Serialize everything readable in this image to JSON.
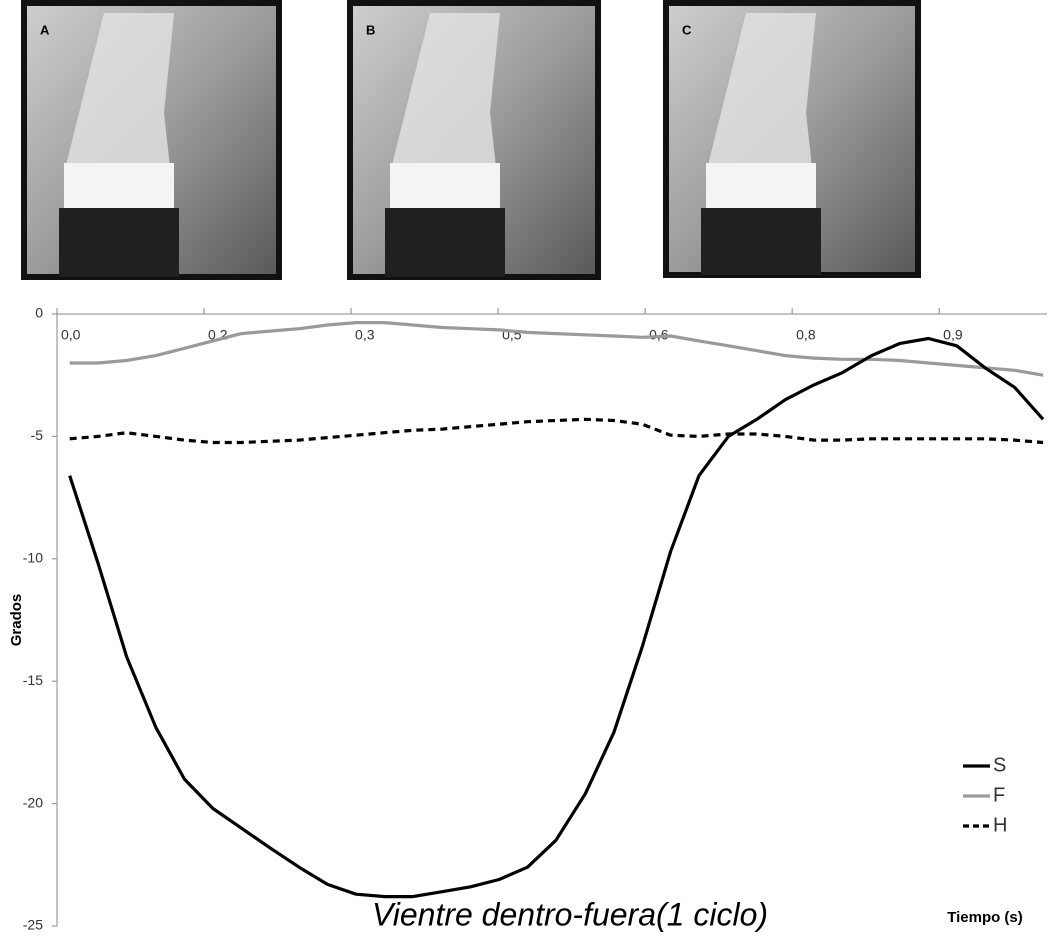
{
  "chart_data": {
    "type": "line",
    "title": "Vientre dentro-fuera(1 ciclo)",
    "x_label": "Tiempo (s)",
    "y_label": "Grados",
    "panel_labels": [
      "A",
      "B",
      "C"
    ],
    "x": [
      0.013,
      0.042,
      0.071,
      0.101,
      0.13,
      0.159,
      0.188,
      0.217,
      0.247,
      0.276,
      0.305,
      0.334,
      0.363,
      0.393,
      0.422,
      0.451,
      0.48,
      0.509,
      0.539,
      0.568,
      0.597,
      0.626,
      0.655,
      0.685,
      0.714,
      0.743,
      0.772,
      0.801,
      0.831,
      0.86,
      0.889,
      0.918,
      0.947,
      0.977,
      1.006
    ],
    "series": [
      {
        "name": "S",
        "color": "#000000",
        "line_style": "solid",
        "values": [
          -6.6,
          -10.2,
          -14.0,
          -16.9,
          -19.0,
          -20.2,
          -21.0,
          -21.8,
          -22.6,
          -23.3,
          -23.7,
          -23.8,
          -23.8,
          -23.6,
          -23.4,
          -23.1,
          -22.6,
          -21.5,
          -19.6,
          -17.1,
          -13.6,
          -9.7,
          -6.6,
          -5.0,
          -4.3,
          -3.5,
          -2.9,
          -2.4,
          -1.7,
          -1.2,
          -1.0,
          -1.3,
          -2.2,
          -3.0,
          -4.3
        ]
      },
      {
        "name": "F",
        "color": "#9a9a9a",
        "line_style": "solid",
        "values": [
          -2.0,
          -2.0,
          -1.9,
          -1.7,
          -1.4,
          -1.1,
          -0.8,
          -0.7,
          -0.6,
          -0.45,
          -0.35,
          -0.35,
          -0.45,
          -0.55,
          -0.6,
          -0.65,
          -0.75,
          -0.8,
          -0.85,
          -0.9,
          -0.95,
          -0.9,
          -1.1,
          -1.3,
          -1.5,
          -1.7,
          -1.8,
          -1.85,
          -1.85,
          -1.9,
          -2.0,
          -2.1,
          -2.2,
          -2.3,
          -2.5
        ]
      },
      {
        "name": "H",
        "color": "#000000",
        "line_style": "dashed",
        "values": [
          -5.1,
          -5.0,
          -4.85,
          -5.0,
          -5.15,
          -5.25,
          -5.25,
          -5.2,
          -5.15,
          -5.05,
          -4.95,
          -4.85,
          -4.75,
          -4.7,
          -4.6,
          -4.5,
          -4.4,
          -4.35,
          -4.3,
          -4.35,
          -4.5,
          -4.95,
          -5.0,
          -4.9,
          -4.9,
          -5.0,
          -5.15,
          -5.15,
          -5.1,
          -5.1,
          -5.1,
          -5.1,
          -5.1,
          -5.15,
          -5.25
        ]
      }
    ],
    "xlim": [
      0,
      1.01
    ],
    "xticks": [
      {
        "value": 0,
        "label": "0,0"
      },
      {
        "value": 0.15,
        "label": "0,2"
      },
      {
        "value": 0.3,
        "label": "0,3"
      },
      {
        "value": 0.45,
        "label": "0,5"
      },
      {
        "value": 0.6,
        "label": "0,6"
      },
      {
        "value": 0.75,
        "label": "0,8"
      },
      {
        "value": 0.9,
        "label": "0,9"
      }
    ],
    "ylim": [
      -25,
      0
    ],
    "yticks": [
      0,
      -5,
      -10,
      -15,
      -20,
      -25
    ],
    "legend": "lower right",
    "grid": false
  }
}
